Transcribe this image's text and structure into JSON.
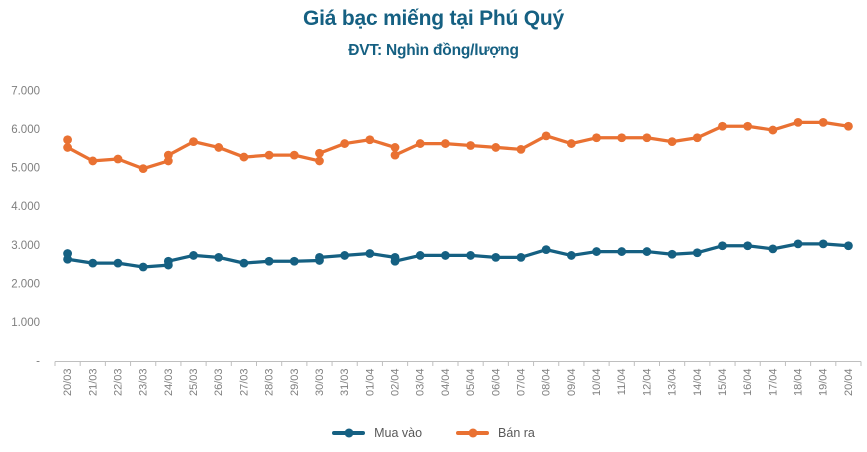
{
  "colors": {
    "accent_blue": "#156082",
    "accent_orange": "#E97132",
    "axis_text": "#7f7f7f",
    "axis_line": "#bfbfbf",
    "legend_text": "#595959",
    "title_text": "#156082"
  },
  "chart_data": {
    "type": "line",
    "title": "Giá bạc miếng tại Phú Quý",
    "unit_label": "ĐVT: Nghìn đồng/lượng",
    "xlabel": "",
    "ylabel": "",
    "grid": false,
    "legend_position": "bottom",
    "categories": [
      "20/03",
      "21/03",
      "22/03",
      "23/03",
      "24/03",
      "25/03",
      "26/03",
      "27/03",
      "28/03",
      "29/03",
      "30/03",
      "31/03",
      "01/04",
      "02/04",
      "03/04",
      "04/04",
      "05/04",
      "06/04",
      "07/04",
      "08/04",
      "09/04",
      "10/04",
      "11/04",
      "12/04",
      "13/04",
      "14/04",
      "15/04",
      "16/04",
      "17/04",
      "18/04",
      "19/04",
      "20/04"
    ],
    "y_axis": {
      "min": 0,
      "max": 7000,
      "ticks": [
        {
          "label": "7.000",
          "v": 7000
        },
        {
          "label": "6.000",
          "v": 6000
        },
        {
          "label": "5.000",
          "v": 5000
        },
        {
          "label": "4.000",
          "v": 4000
        },
        {
          "label": "3.000",
          "v": 3000
        },
        {
          "label": "2.000",
          "v": 2000
        },
        {
          "label": "1.000",
          "v": 1000
        },
        {
          "label": "-",
          "v": 0
        }
      ]
    },
    "series": [
      {
        "name": "Mua vào",
        "color": "#156082",
        "points": [
          [
            "20/03",
            2800
          ],
          [
            "20/03",
            2650
          ],
          [
            "21/03",
            2550
          ],
          [
            "22/03",
            2550
          ],
          [
            "23/03",
            2450
          ],
          [
            "24/03",
            2500
          ],
          [
            "24/03",
            2600
          ],
          [
            "25/03",
            2750
          ],
          [
            "26/03",
            2700
          ],
          [
            "27/03",
            2550
          ],
          [
            "28/03",
            2600
          ],
          [
            "29/03",
            2600
          ],
          [
            "30/03",
            2620
          ],
          [
            "30/03",
            2700
          ],
          [
            "31/03",
            2750
          ],
          [
            "01/04",
            2800
          ],
          [
            "02/04",
            2700
          ],
          [
            "02/04",
            2600
          ],
          [
            "03/04",
            2750
          ],
          [
            "04/04",
            2750
          ],
          [
            "05/04",
            2750
          ],
          [
            "06/04",
            2700
          ],
          [
            "07/04",
            2700
          ],
          [
            "08/04",
            2900
          ],
          [
            "09/04",
            2750
          ],
          [
            "10/04",
            2850
          ],
          [
            "11/04",
            2850
          ],
          [
            "12/04",
            2850
          ],
          [
            "13/04",
            2780
          ],
          [
            "14/04",
            2820
          ],
          [
            "15/04",
            3000
          ],
          [
            "16/04",
            3000
          ],
          [
            "17/04",
            2920
          ],
          [
            "18/04",
            3050
          ],
          [
            "19/04",
            3050
          ],
          [
            "20/04",
            3000
          ]
        ]
      },
      {
        "name": "Bán ra",
        "color": "#E97132",
        "points": [
          [
            "20/03",
            5750
          ],
          [
            "20/03",
            5550
          ],
          [
            "21/03",
            5200
          ],
          [
            "22/03",
            5250
          ],
          [
            "23/03",
            5000
          ],
          [
            "24/03",
            5200
          ],
          [
            "24/03",
            5350
          ],
          [
            "25/03",
            5700
          ],
          [
            "26/03",
            5550
          ],
          [
            "27/03",
            5300
          ],
          [
            "28/03",
            5350
          ],
          [
            "29/03",
            5350
          ],
          [
            "30/03",
            5200
          ],
          [
            "30/03",
            5400
          ],
          [
            "31/03",
            5650
          ],
          [
            "01/04",
            5750
          ],
          [
            "02/04",
            5550
          ],
          [
            "02/04",
            5350
          ],
          [
            "03/04",
            5650
          ],
          [
            "04/04",
            5650
          ],
          [
            "05/04",
            5600
          ],
          [
            "06/04",
            5550
          ],
          [
            "07/04",
            5500
          ],
          [
            "08/04",
            5850
          ],
          [
            "09/04",
            5650
          ],
          [
            "10/04",
            5800
          ],
          [
            "11/04",
            5800
          ],
          [
            "12/04",
            5800
          ],
          [
            "13/04",
            5700
          ],
          [
            "14/04",
            5800
          ],
          [
            "15/04",
            6100
          ],
          [
            "16/04",
            6100
          ],
          [
            "17/04",
            6000
          ],
          [
            "18/04",
            6200
          ],
          [
            "19/04",
            6200
          ],
          [
            "20/04",
            6100
          ]
        ]
      }
    ]
  }
}
